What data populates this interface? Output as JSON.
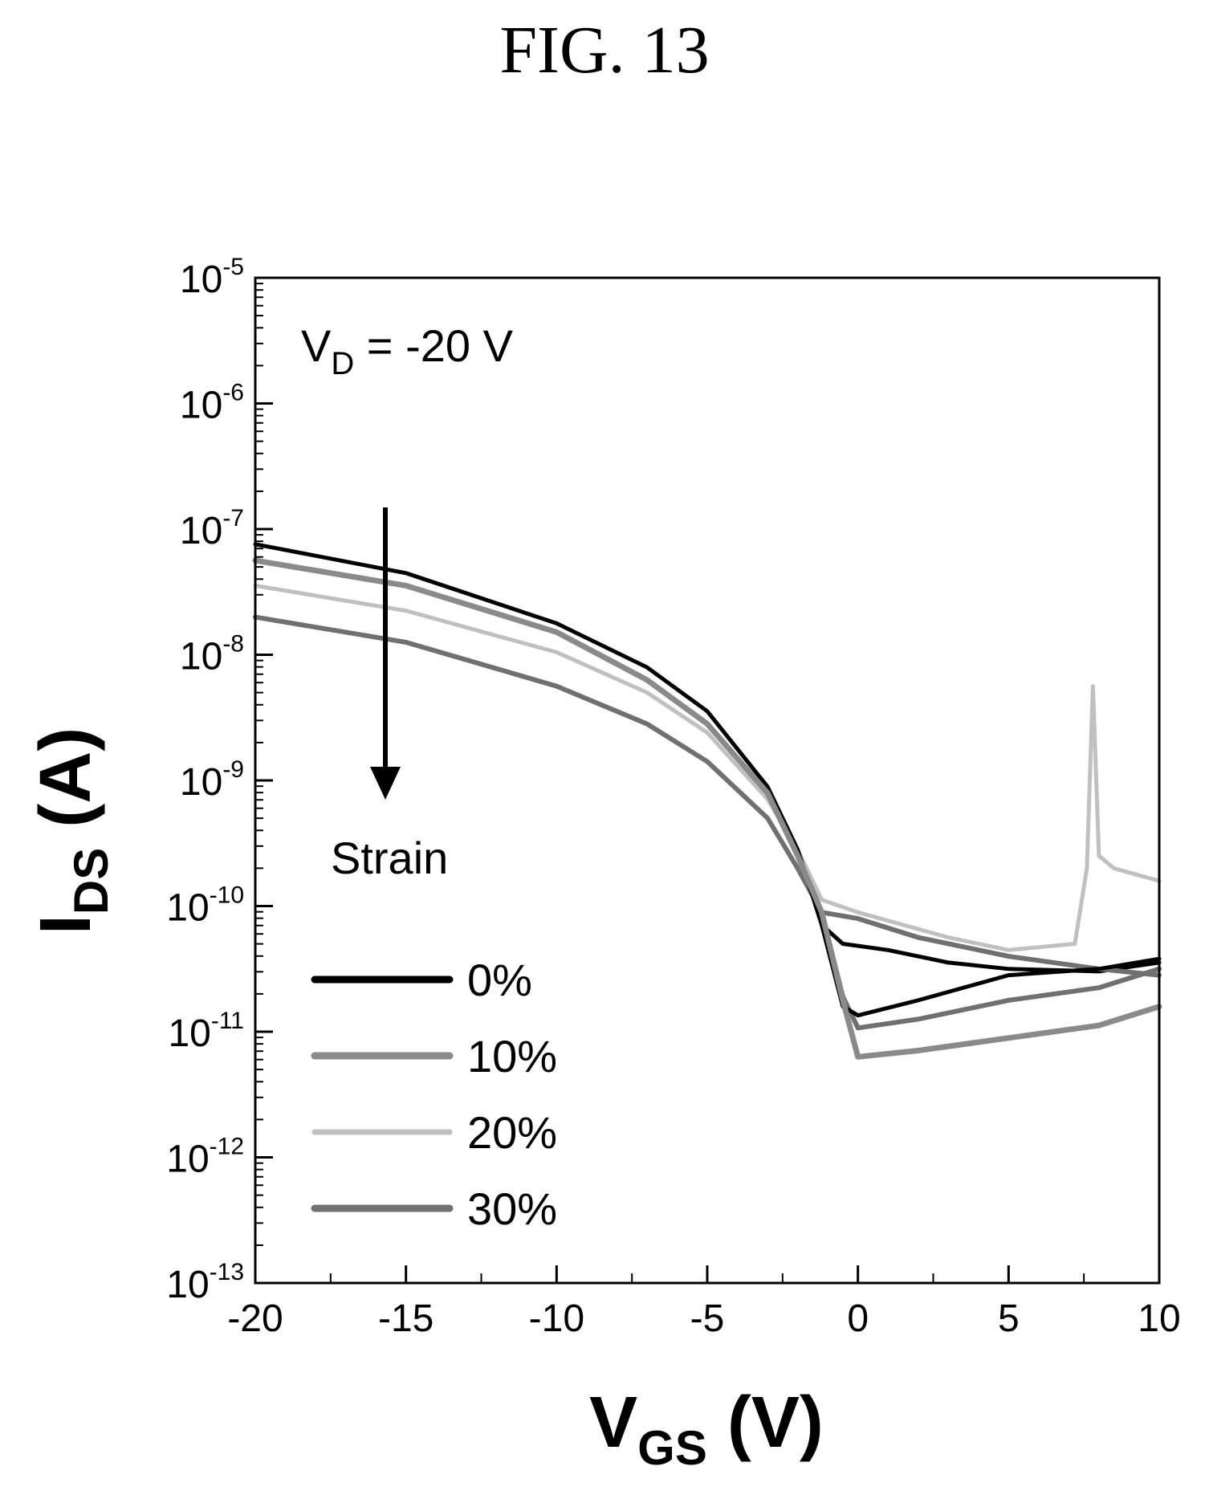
{
  "figure_title": "FIG. 13",
  "chart_data": {
    "type": "line",
    "xlabel": {
      "main": "V",
      "sub": "GS",
      "unit": " (V)"
    },
    "ylabel": {
      "main": "I",
      "sub": "DS",
      "unit": " (A)"
    },
    "xlim": [
      -20,
      10
    ],
    "ylim": [
      -13,
      -5
    ],
    "yscale": "log",
    "xticks": [
      "-20",
      "-15",
      "-10",
      "-5",
      "0",
      "5",
      "10"
    ],
    "xtick_values": [
      -20,
      -15,
      -10,
      -5,
      0,
      5,
      10
    ],
    "yticks": [
      {
        "base": "10",
        "exp": "-5",
        "value": -5
      },
      {
        "base": "10",
        "exp": "-6",
        "value": -6
      },
      {
        "base": "10",
        "exp": "-7",
        "value": -7
      },
      {
        "base": "10",
        "exp": "-8",
        "value": -8
      },
      {
        "base": "10",
        "exp": "-9",
        "value": -9
      },
      {
        "base": "10",
        "exp": "-10",
        "value": -10
      },
      {
        "base": "10",
        "exp": "-11",
        "value": -11
      },
      {
        "base": "10",
        "exp": "-12",
        "value": -12
      },
      {
        "base": "10",
        "exp": "-13",
        "value": -13
      }
    ],
    "annotations": {
      "vd": {
        "main": "V",
        "sub": "D",
        "rest": " = -20 V"
      },
      "arrow_label": "Strain"
    },
    "legend_position": "lower-left",
    "series": [
      {
        "name": "0%",
        "color": "#000000",
        "width": 5,
        "x": [
          -20,
          -15,
          -10,
          -7,
          -5,
          -3,
          -2,
          -1.2,
          -0.5,
          0,
          2,
          5,
          8,
          10
        ],
        "log10_y": [
          -7.12,
          -7.35,
          -7.75,
          -8.1,
          -8.45,
          -9.05,
          -9.55,
          -10.15,
          -10.8,
          -10.87,
          -10.75,
          -10.55,
          -10.5,
          -10.42
        ]
      },
      {
        "name": "0%",
        "color": "#000000",
        "width": 5,
        "x": [
          -1.2,
          -0.5,
          1,
          3,
          5,
          8,
          10
        ],
        "log10_y": [
          -10.15,
          -10.3,
          -10.35,
          -10.45,
          -10.5,
          -10.52,
          -10.45
        ]
      },
      {
        "name": "10%",
        "color": "#8a8a8a",
        "width": 7,
        "x": [
          -20,
          -15,
          -10,
          -7,
          -5,
          -3,
          -2,
          -1.2,
          -0.5,
          0,
          2,
          5,
          8,
          10
        ],
        "log10_y": [
          -7.25,
          -7.45,
          -7.82,
          -8.2,
          -8.55,
          -9.1,
          -9.6,
          -10.05,
          -10.75,
          -11.2,
          -11.15,
          -11.05,
          -10.95,
          -10.8
        ]
      },
      {
        "name": "20%",
        "color": "#c0c0c0",
        "width": 5,
        "x": [
          -20,
          -15,
          -10,
          -7,
          -5,
          -3,
          -2,
          -1.2,
          0,
          3,
          5,
          7.2,
          7.6,
          7.8,
          8,
          8.5,
          10
        ],
        "log10_y": [
          -7.45,
          -7.65,
          -7.98,
          -8.3,
          -8.62,
          -9.15,
          -9.55,
          -9.95,
          -10.05,
          -10.25,
          -10.35,
          -10.3,
          -9.7,
          -8.25,
          -9.6,
          -9.7,
          -9.8
        ]
      },
      {
        "name": "30%",
        "color": "#707070",
        "width": 6,
        "x": [
          -20,
          -15,
          -10,
          -7,
          -5,
          -3,
          -2,
          -1.2,
          -0.5,
          0,
          2,
          5,
          8,
          10
        ],
        "log10_y": [
          -7.7,
          -7.9,
          -8.25,
          -8.55,
          -8.85,
          -9.3,
          -9.7,
          -10.05,
          -10.72,
          -10.97,
          -10.9,
          -10.75,
          -10.65,
          -10.5
        ]
      },
      {
        "name": "30%",
        "color": "#707070",
        "width": 6,
        "x": [
          -1.2,
          0,
          2,
          5,
          8,
          10
        ],
        "log10_y": [
          -10.05,
          -10.1,
          -10.25,
          -10.4,
          -10.5,
          -10.55
        ]
      }
    ],
    "legend": [
      {
        "label": "0%",
        "color": "#000000",
        "width": 9
      },
      {
        "label": "10%",
        "color": "#8a8a8a",
        "width": 9
      },
      {
        "label": "20%",
        "color": "#c0c0c0",
        "width": 7
      },
      {
        "label": "30%",
        "color": "#707070",
        "width": 9
      }
    ]
  }
}
